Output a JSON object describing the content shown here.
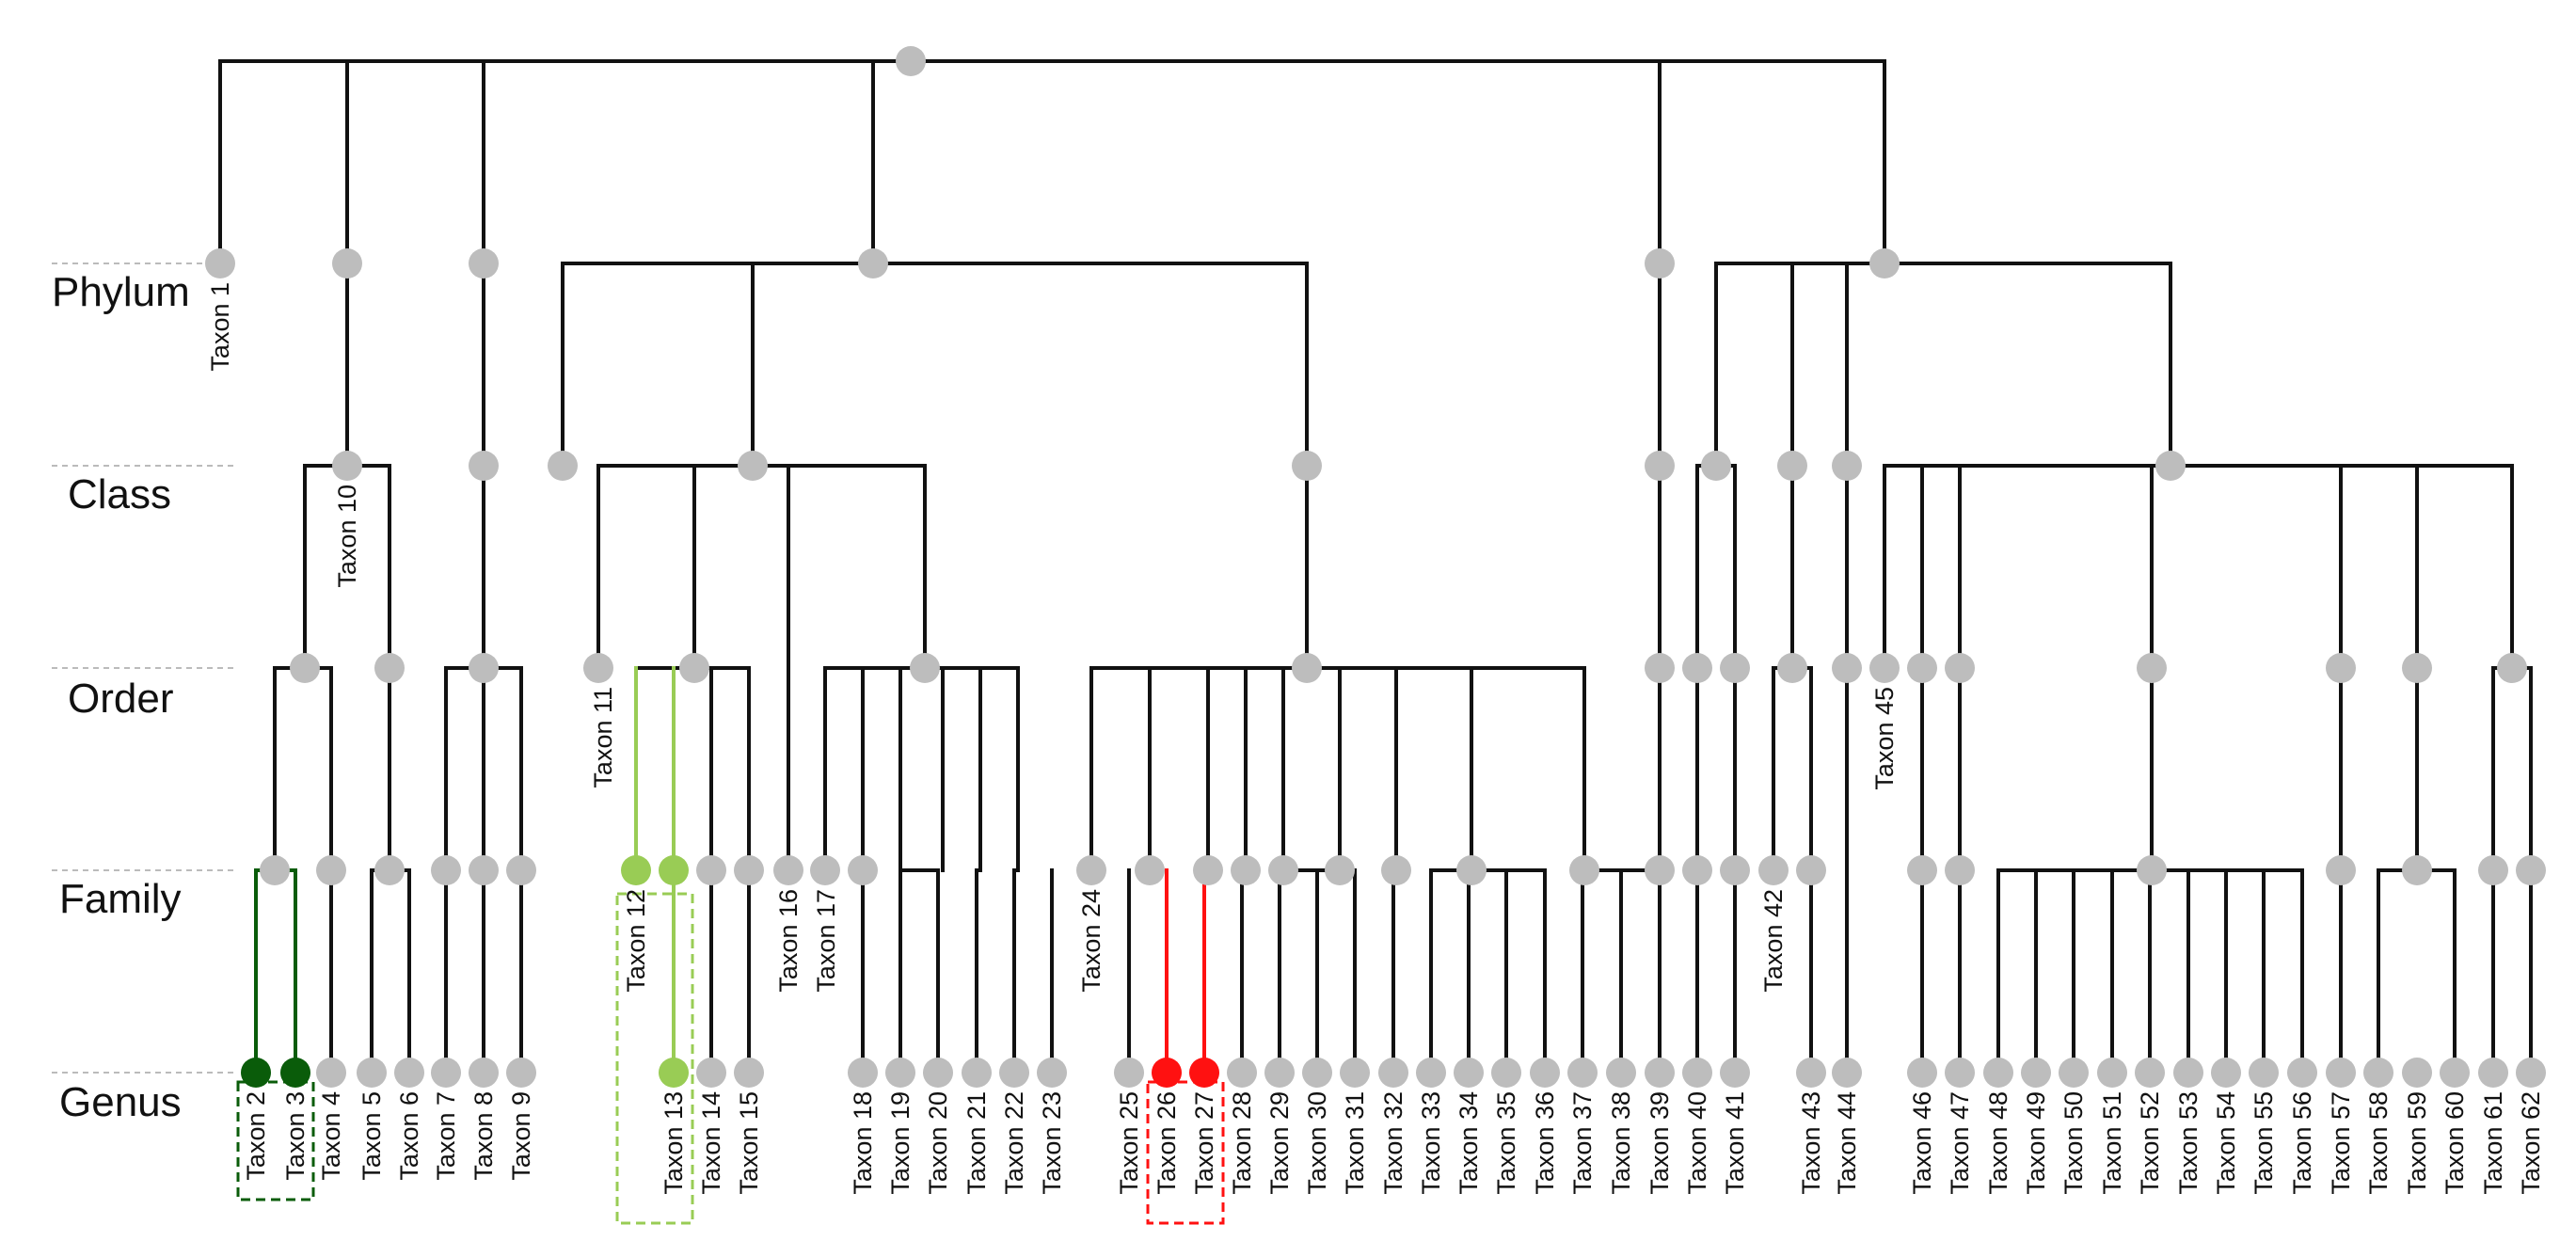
{
  "ranks": [
    "Phylum",
    "Class",
    "Order",
    "Family",
    "Genus"
  ],
  "colors": {
    "default_node": "#bdbdbd",
    "edge": "#111111",
    "dark_green": "#0a5c0a",
    "light_green": "#99cc55",
    "red": "#ff1111",
    "guide": "#bbbbbb"
  },
  "taxa": [
    "Taxon 1",
    "Taxon 2",
    "Taxon 3",
    "Taxon 4",
    "Taxon 5",
    "Taxon 6",
    "Taxon 7",
    "Taxon 8",
    "Taxon 9",
    "Taxon 10",
    "Taxon 11",
    "Taxon 12",
    "Taxon 13",
    "Taxon 14",
    "Taxon 15",
    "Taxon 16",
    "Taxon 17",
    "Taxon 18",
    "Taxon 19",
    "Taxon 20",
    "Taxon 21",
    "Taxon 22",
    "Taxon 23",
    "Taxon 24",
    "Taxon 25",
    "Taxon 26",
    "Taxon 27",
    "Taxon 28",
    "Taxon 29",
    "Taxon 30",
    "Taxon 31",
    "Taxon 32",
    "Taxon 33",
    "Taxon 34",
    "Taxon 35",
    "Taxon 36",
    "Taxon 37",
    "Taxon 38",
    "Taxon 39",
    "Taxon 40",
    "Taxon 41",
    "Taxon 42",
    "Taxon 43",
    "Taxon 44",
    "Taxon 45",
    "Taxon 46",
    "Taxon 47",
    "Taxon 48",
    "Taxon 49",
    "Taxon 50",
    "Taxon 51",
    "Taxon 52",
    "Taxon 53",
    "Taxon 54",
    "Taxon 55",
    "Taxon 56",
    "Taxon 57",
    "Taxon 58",
    "Taxon 59",
    "Taxon 60",
    "Taxon 61",
    "Taxon 62"
  ],
  "highlight_groups": [
    {
      "name": "dark-green",
      "taxa": [
        2,
        3
      ],
      "color": "#0a5c0a"
    },
    {
      "name": "light-green",
      "taxa": [
        12,
        13
      ],
      "color": "#99cc55"
    },
    {
      "name": "red",
      "taxa": [
        26,
        27
      ],
      "color": "#ff1111"
    }
  ]
}
